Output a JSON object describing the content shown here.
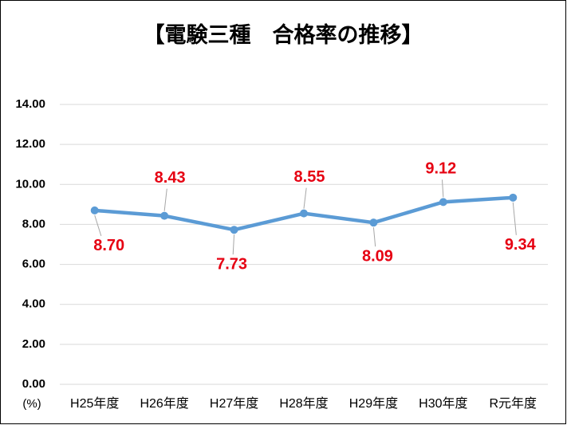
{
  "chart_data": {
    "type": "line",
    "title": "【電験三種　合格率の推移】",
    "y_label": "(%)",
    "categories": [
      "H25年度",
      "H26年度",
      "H27年度",
      "H28年度",
      "H29年度",
      "H30年度",
      "R元年度"
    ],
    "series": [
      {
        "name": "合格率",
        "color": "#5b9bd5",
        "values": [
          8.7,
          8.43,
          7.73,
          8.55,
          8.09,
          9.12,
          9.34
        ],
        "value_labels": [
          "8.70",
          "8.43",
          "7.73",
          "8.55",
          "8.09",
          "9.12",
          "9.34"
        ],
        "label_color": "#e60012"
      }
    ],
    "ylim": [
      0,
      14
    ],
    "yticks": [
      {
        "value": 0,
        "label": "0.00"
      },
      {
        "value": 2,
        "label": "2.00"
      },
      {
        "value": 4,
        "label": "4.00"
      },
      {
        "value": 6,
        "label": "6.00"
      },
      {
        "value": 8,
        "label": "8.00"
      },
      {
        "value": 10,
        "label": "10.00"
      },
      {
        "value": 12,
        "label": "12.00"
      },
      {
        "value": 14,
        "label": "14.00"
      }
    ],
    "grid": true
  }
}
